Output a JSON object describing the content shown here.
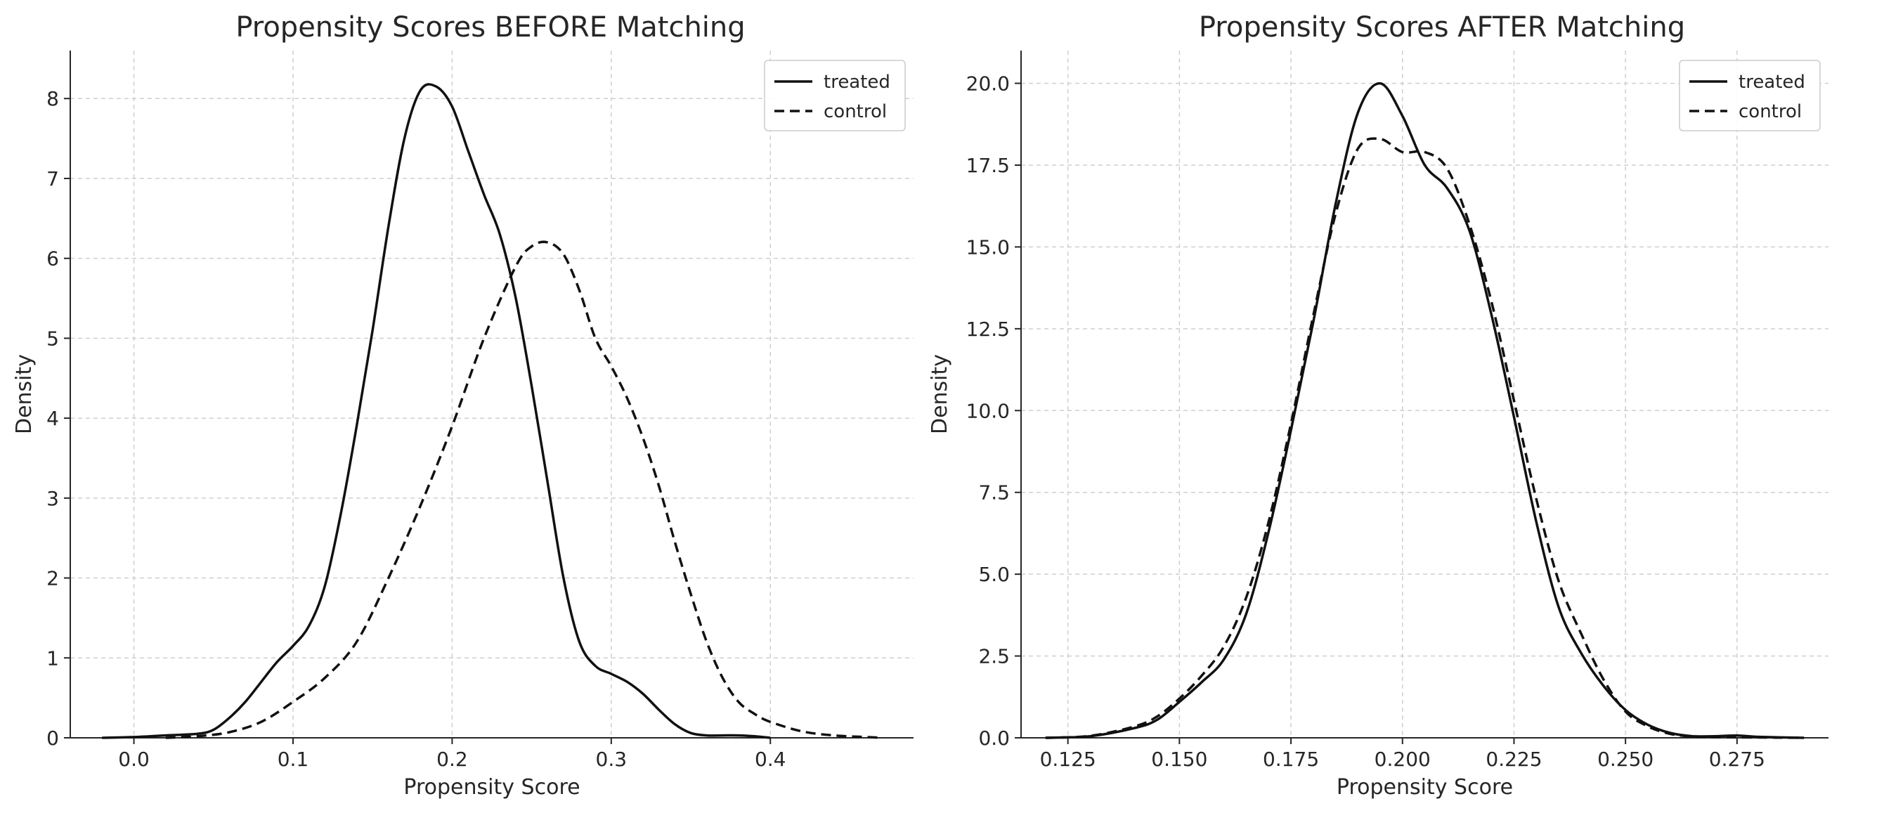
{
  "chart_data": [
    {
      "type": "line",
      "title": "Propensity Scores BEFORE Matching",
      "xlabel": "Propensity Score",
      "ylabel": "Density",
      "xlim": [
        -0.04,
        0.49
      ],
      "ylim": [
        0,
        8.6
      ],
      "xticks": [
        0.0,
        0.1,
        0.2,
        0.3,
        0.4
      ],
      "xtick_labels": [
        "0.0",
        "0.1",
        "0.2",
        "0.3",
        "0.4"
      ],
      "yticks": [
        0,
        1,
        2,
        3,
        4,
        5,
        6,
        7,
        8
      ],
      "ytick_labels": [
        "0",
        "1",
        "2",
        "3",
        "4",
        "5",
        "6",
        "7",
        "8"
      ],
      "grid": true,
      "legend_position": "top-right",
      "series": [
        {
          "name": "treated",
          "style": "solid",
          "x": [
            -0.02,
            0.0,
            0.02,
            0.04,
            0.05,
            0.06,
            0.07,
            0.08,
            0.09,
            0.1,
            0.11,
            0.12,
            0.13,
            0.14,
            0.15,
            0.16,
            0.17,
            0.18,
            0.19,
            0.2,
            0.21,
            0.22,
            0.23,
            0.24,
            0.25,
            0.26,
            0.27,
            0.28,
            0.29,
            0.3,
            0.31,
            0.32,
            0.33,
            0.34,
            0.35,
            0.36,
            0.37,
            0.38,
            0.39,
            0.4
          ],
          "y": [
            0.0,
            0.01,
            0.03,
            0.05,
            0.1,
            0.25,
            0.45,
            0.7,
            0.95,
            1.15,
            1.4,
            1.9,
            2.8,
            3.9,
            5.1,
            6.4,
            7.5,
            8.1,
            8.15,
            7.9,
            7.35,
            6.8,
            6.3,
            5.5,
            4.4,
            3.2,
            2.0,
            1.2,
            0.9,
            0.8,
            0.7,
            0.55,
            0.35,
            0.17,
            0.06,
            0.03,
            0.03,
            0.03,
            0.02,
            0.0
          ]
        },
        {
          "name": "control",
          "style": "dashed",
          "x": [
            0.02,
            0.04,
            0.06,
            0.08,
            0.1,
            0.12,
            0.14,
            0.16,
            0.18,
            0.2,
            0.22,
            0.24,
            0.25,
            0.26,
            0.27,
            0.28,
            0.29,
            0.3,
            0.31,
            0.32,
            0.33,
            0.34,
            0.35,
            0.36,
            0.37,
            0.38,
            0.39,
            0.4,
            0.42,
            0.44,
            0.46,
            0.47
          ],
          "y": [
            0.0,
            0.02,
            0.07,
            0.2,
            0.45,
            0.75,
            1.2,
            2.0,
            2.9,
            3.9,
            5.0,
            5.9,
            6.15,
            6.2,
            6.05,
            5.6,
            5.0,
            4.65,
            4.25,
            3.75,
            3.15,
            2.45,
            1.8,
            1.2,
            0.75,
            0.45,
            0.3,
            0.2,
            0.08,
            0.03,
            0.01,
            0.0
          ]
        }
      ]
    },
    {
      "type": "line",
      "title": "Propensity Scores AFTER Matching",
      "xlabel": "Propensity Score",
      "ylabel": "Density",
      "xlim": [
        0.1145,
        0.2955
      ],
      "ylim": [
        0,
        21
      ],
      "xticks": [
        0.125,
        0.15,
        0.175,
        0.2,
        0.225,
        0.25,
        0.275
      ],
      "xtick_labels": [
        "0.125",
        "0.150",
        "0.175",
        "0.200",
        "0.225",
        "0.250",
        "0.275"
      ],
      "yticks": [
        0.0,
        2.5,
        5.0,
        7.5,
        10.0,
        12.5,
        15.0,
        17.5,
        20.0
      ],
      "ytick_labels": [
        "0.0",
        "2.5",
        "5.0",
        "7.5",
        "10.0",
        "12.5",
        "15.0",
        "17.5",
        "20.0"
      ],
      "grid": true,
      "legend_position": "top-right",
      "series": [
        {
          "name": "treated",
          "style": "solid",
          "x": [
            0.12,
            0.13,
            0.14,
            0.145,
            0.15,
            0.155,
            0.16,
            0.165,
            0.17,
            0.175,
            0.18,
            0.185,
            0.19,
            0.195,
            0.2,
            0.205,
            0.21,
            0.215,
            0.22,
            0.225,
            0.23,
            0.235,
            0.24,
            0.245,
            0.25,
            0.255,
            0.26,
            0.265,
            0.27,
            0.275,
            0.28,
            0.29
          ],
          "y": [
            0.0,
            0.05,
            0.3,
            0.55,
            1.1,
            1.7,
            2.4,
            3.8,
            6.3,
            9.4,
            12.7,
            16.3,
            19.1,
            20.0,
            19.0,
            17.5,
            16.8,
            15.5,
            12.9,
            9.8,
            6.6,
            4.0,
            2.6,
            1.6,
            0.85,
            0.4,
            0.15,
            0.05,
            0.05,
            0.07,
            0.03,
            0.0
          ]
        },
        {
          "name": "control",
          "style": "dashed",
          "x": [
            0.12,
            0.13,
            0.14,
            0.145,
            0.15,
            0.155,
            0.16,
            0.165,
            0.17,
            0.175,
            0.18,
            0.185,
            0.19,
            0.195,
            0.2,
            0.205,
            0.21,
            0.215,
            0.22,
            0.225,
            0.23,
            0.235,
            0.24,
            0.245,
            0.25,
            0.255,
            0.26,
            0.265,
            0.27,
            0.28,
            0.29
          ],
          "y": [
            0.0,
            0.06,
            0.35,
            0.65,
            1.2,
            1.9,
            2.8,
            4.3,
            6.6,
            9.6,
            12.9,
            16.0,
            18.0,
            18.3,
            17.9,
            17.9,
            17.4,
            15.7,
            13.3,
            10.3,
            7.3,
            4.8,
            3.2,
            1.8,
            0.8,
            0.35,
            0.12,
            0.04,
            0.02,
            0.01,
            0.0
          ]
        }
      ]
    }
  ]
}
